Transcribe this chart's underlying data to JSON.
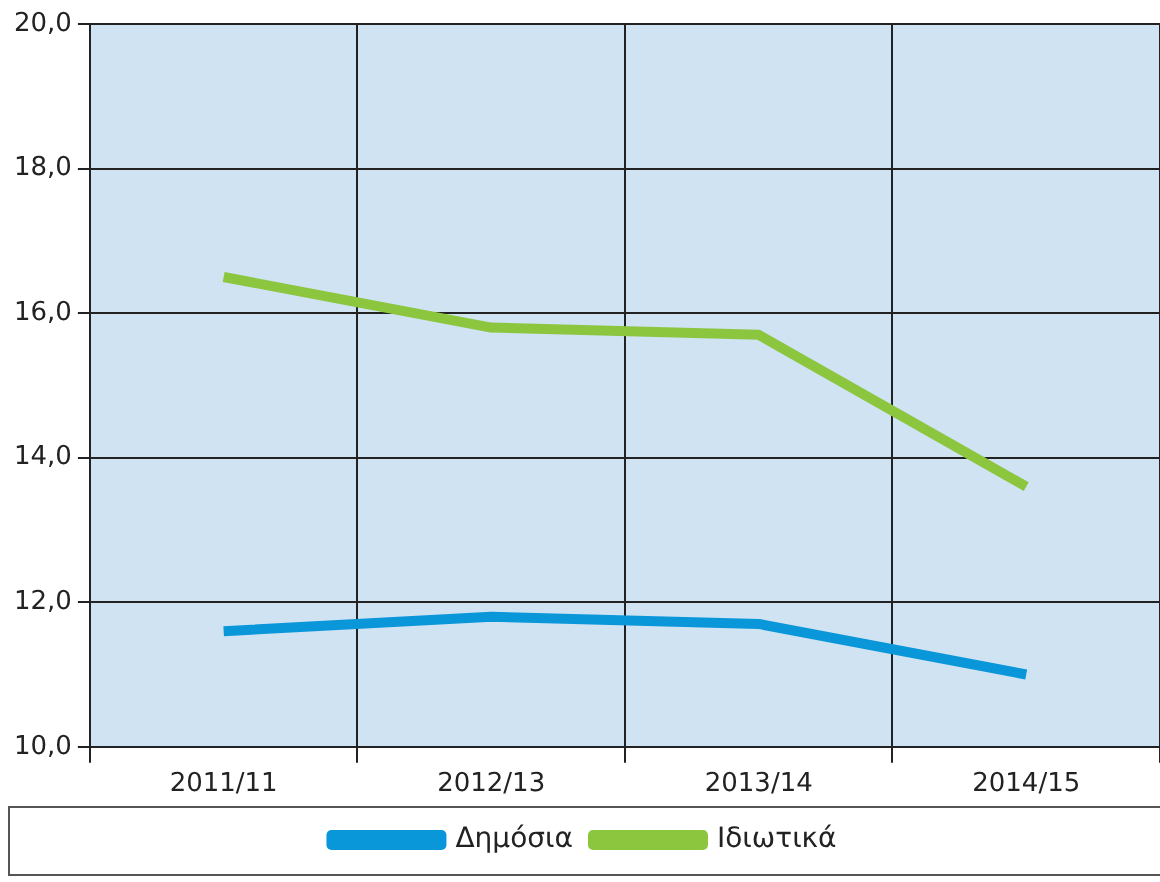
{
  "chart_data": {
    "type": "line",
    "categories": [
      "2011/11",
      "2012/13",
      "2013/14",
      "2014/15"
    ],
    "series": [
      {
        "name": "Δημόσια",
        "color": "#0a97d9",
        "values": [
          11.6,
          11.8,
          11.7,
          11.0
        ]
      },
      {
        "name": "Ιδιωτικά",
        "color": "#8cc63f",
        "values": [
          16.5,
          15.8,
          15.7,
          13.6
        ]
      }
    ],
    "ylim": [
      10,
      20
    ],
    "yticks": [
      {
        "value": 10,
        "label": "10,0"
      },
      {
        "value": 12,
        "label": "12,0"
      },
      {
        "value": 14,
        "label": "14,0"
      },
      {
        "value": 16,
        "label": "16,0"
      },
      {
        "value": 18,
        "label": "18,0"
      },
      {
        "value": 20,
        "label": "20,0"
      }
    ],
    "grid": true,
    "legend": "bottom",
    "marker": "none",
    "line_style": "solid"
  }
}
